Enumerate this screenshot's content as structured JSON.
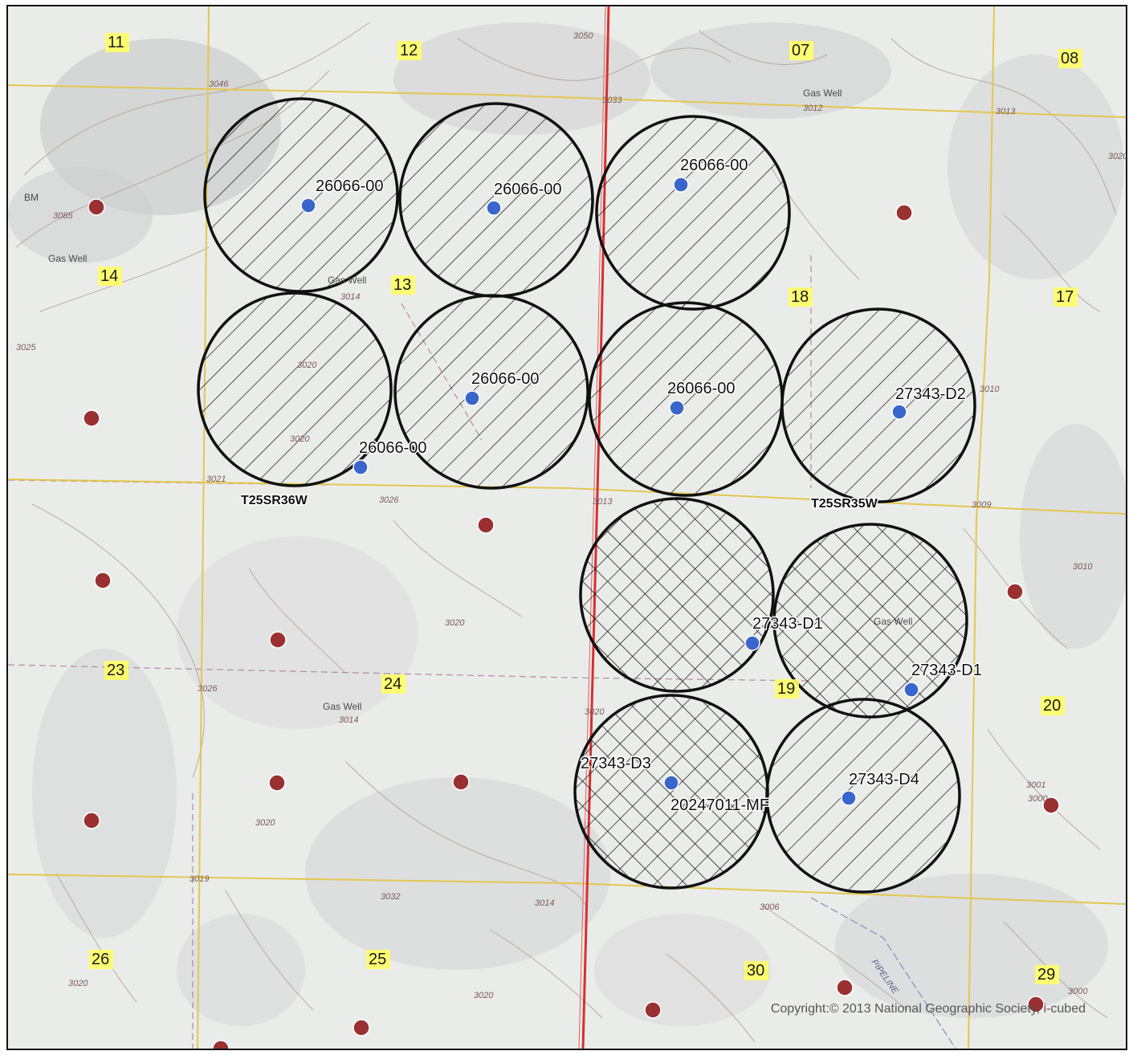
{
  "map": {
    "copyright": "Copyright:© 2013 National Geographic Society, i-cubed",
    "townships": [
      "T25SR36W",
      "T25SR35W"
    ],
    "sections": [
      "11",
      "12",
      "07",
      "08",
      "14",
      "13",
      "18",
      "17",
      "23",
      "24",
      "19",
      "20",
      "26",
      "25",
      "30",
      "29"
    ],
    "buffer_areas": [
      {
        "well": "26066-00",
        "pattern": "diagonal"
      },
      {
        "well": "26066-00",
        "pattern": "diagonal"
      },
      {
        "well": "26066-00",
        "pattern": "diagonal"
      },
      {
        "well": "26066-00",
        "pattern": "diagonal"
      },
      {
        "well": "26066-00",
        "pattern": "diagonal"
      },
      {
        "well": "26066-00",
        "pattern": "diagonal"
      },
      {
        "well": "27343-D2",
        "pattern": "diagonal"
      },
      {
        "well": "27343-D1",
        "pattern": "crosshatch"
      },
      {
        "well": "27343-D1",
        "pattern": "crosshatch"
      },
      {
        "well": "27343-D3",
        "pattern": "crosshatch"
      },
      {
        "well": "27343-D4",
        "pattern": "diagonal"
      }
    ],
    "well_labels": [
      "26066-00",
      "26066-00",
      "26066-00",
      "26066-00",
      "26066-00",
      "26066-00",
      "27343-D2",
      "27343-D1",
      "27343-D1",
      "27343-D3",
      "20247011-MF",
      "27343-D4"
    ],
    "feature_labels": [
      "Gas Well",
      "Gas Well",
      "Gas Well",
      "Gas Well",
      "Gas Well",
      "BM"
    ],
    "contour_labels": [
      "3046",
      "3033",
      "3050",
      "3012",
      "3013",
      "3020",
      "3085",
      "3014",
      "3025",
      "3020",
      "3010",
      "3020",
      "3021",
      "3026",
      "3013",
      "3009",
      "3010",
      "3020",
      "3026",
      "3014",
      "3020",
      "3001",
      "3000",
      "3020",
      "3019",
      "3032",
      "3014",
      "3006",
      "3020",
      "3020",
      "3000"
    ],
    "pipeline_label": "PIPELINE",
    "colors": {
      "well_point": "#3a66cc",
      "other_point": "#9a3030",
      "section_line": "#e8d060",
      "range_line": "#d83030",
      "buffer_stroke": "#111111"
    }
  }
}
